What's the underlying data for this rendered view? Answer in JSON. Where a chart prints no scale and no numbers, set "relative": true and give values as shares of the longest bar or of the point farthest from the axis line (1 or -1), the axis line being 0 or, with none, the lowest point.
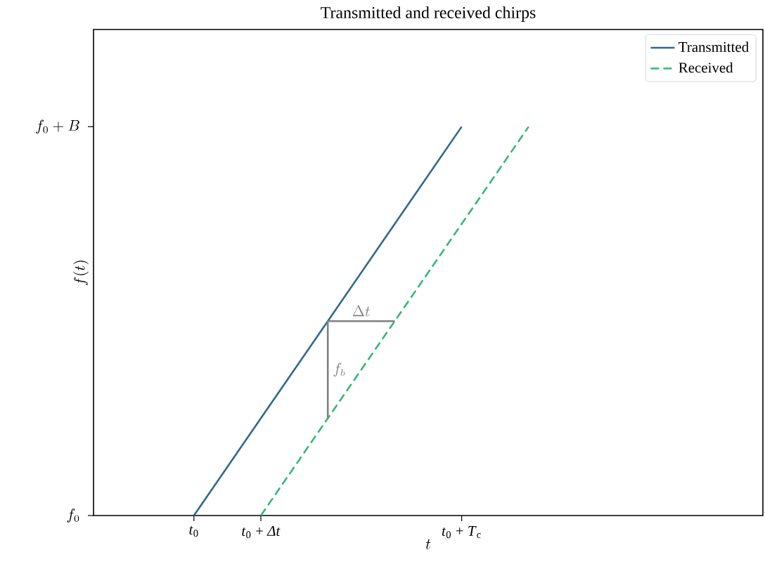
{
  "chart_data": {
    "type": "line",
    "title": "Transmitted and received chirps",
    "xlabel": "t",
    "ylabel": "f(t)",
    "relative": true,
    "categories": [
      null,
      "*t*$_{0}$",
      "*t*$_{0}$ + *Δt*",
      null,
      null,
      "*t*$_{0}$ + *T*$_{c}$",
      null,
      null,
      null,
      null
    ],
    "series": [
      {
        "name": "Transmitted",
        "color": "#31688e",
        "values": [
          null,
          0,
          0.25,
          0.5,
          0.75,
          1,
          null,
          null,
          null,
          null
        ],
        "line_style": "solid"
      },
      {
        "name": "Received",
        "color": "#35b779",
        "values": [
          null,
          null,
          0,
          0.25,
          0.5,
          0.75,
          1,
          null,
          null,
          null
        ],
        "line_style": "dashed"
      },
      {
        "color": "#808080",
        "values": [
          null,
          null,
          null,
          0.5,
          0.5,
          null,
          null,
          null,
          null,
          null
        ],
        "line_style": "solid"
      }
    ],
    "annotations": [
      "\\Delta t",
      "f_b",
      "f_0",
      "f_0 + B"
    ],
    "legend": "top right",
    "marker": "none"
  }
}
